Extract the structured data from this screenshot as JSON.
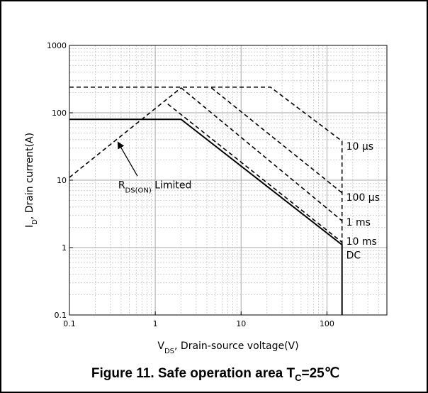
{
  "caption": {
    "prefix": "Figure 11. Safe operation area T",
    "sub": "C",
    "suffix": "=25℃"
  },
  "chart_data": {
    "type": "line",
    "x_scale": "log",
    "y_scale": "log",
    "xlim": [
      0.1,
      500
    ],
    "ylim": [
      0.1,
      1000
    ],
    "grid": true,
    "x_ticks": [
      {
        "v": 0.1,
        "label": "0.1"
      },
      {
        "v": 1,
        "label": "1"
      },
      {
        "v": 10,
        "label": "10"
      },
      {
        "v": 100,
        "label": "100"
      }
    ],
    "y_ticks": [
      {
        "v": 0.1,
        "label": "0.1"
      },
      {
        "v": 1,
        "label": "1"
      },
      {
        "v": 10,
        "label": "10"
      },
      {
        "v": 100,
        "label": "100"
      },
      {
        "v": 1000,
        "label": "1000"
      }
    ],
    "xlabel": {
      "main": "V",
      "sub": "DS",
      "rest": ", Drain-source voltage(V)"
    },
    "ylabel": {
      "main": "I",
      "sub": "D",
      "rest": ", Drain current(A)"
    },
    "series": [
      {
        "id": "rds",
        "style": "dashed",
        "points": [
          [
            0.1,
            11
          ],
          [
            2.0,
            235
          ]
        ]
      },
      {
        "id": "10us",
        "style": "dashed",
        "points": [
          [
            0.1,
            240
          ],
          [
            22,
            240
          ],
          [
            150,
            38
          ],
          [
            150,
            1.1
          ]
        ]
      },
      {
        "id": "100us",
        "style": "dashed",
        "points": [
          [
            4.5,
            235
          ],
          [
            150,
            6.5
          ]
        ]
      },
      {
        "id": "1ms",
        "style": "dashed",
        "points": [
          [
            2.0,
            235
          ],
          [
            150,
            2.5
          ]
        ]
      },
      {
        "id": "10ms",
        "style": "dashed",
        "points": [
          [
            1.4,
            135
          ],
          [
            150,
            1.2
          ]
        ]
      },
      {
        "id": "dc",
        "style": "solid",
        "points": [
          [
            0.1,
            80
          ],
          [
            2.0,
            80
          ],
          [
            150,
            1.1
          ],
          [
            150,
            0.1
          ]
        ]
      }
    ],
    "annotations": [
      {
        "id": "10us",
        "text": "10 μs",
        "x": 168,
        "y": 32
      },
      {
        "id": "100us",
        "text": "100 μs",
        "x": 168,
        "y": 5.6
      },
      {
        "id": "1ms",
        "text": "1 ms",
        "x": 168,
        "y": 2.4
      },
      {
        "id": "10ms",
        "text": "10 ms",
        "x": 168,
        "y": 1.25
      },
      {
        "id": "dc",
        "text": "DC",
        "x": 168,
        "y": 0.78
      }
    ],
    "rds_label": {
      "main": "R",
      "sub": "DS(ON)",
      "rest": " Limited",
      "x": 0.37,
      "y": 8.5,
      "arrow_from": [
        0.62,
        11.5
      ],
      "arrow_to": [
        0.37,
        36
      ]
    }
  }
}
